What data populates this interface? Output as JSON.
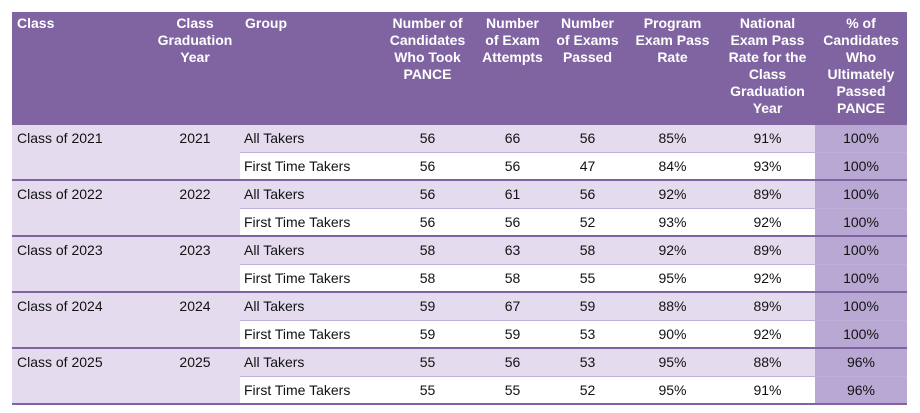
{
  "table": {
    "columns": [
      "Class",
      "Class Graduation Year",
      "Group",
      "Number of Candidates Who Took PANCE",
      "Number of Exam Attempts",
      "Number of Exams Passed",
      "Program Exam Pass Rate",
      "National Exam Pass Rate for the Class Graduation Year",
      "% of Candidates Who Ultimately Passed PANCE"
    ],
    "groups": [
      {
        "class": "Class of 2021",
        "year": 2021,
        "rows": [
          [
            "All Takers",
            56,
            66,
            56,
            "85%",
            "91%",
            "100%"
          ],
          [
            "First Time Takers",
            56,
            56,
            47,
            "84%",
            "93%",
            "100%"
          ]
        ]
      },
      {
        "class": "Class of 2022",
        "year": 2022,
        "rows": [
          [
            "All Takers",
            56,
            61,
            56,
            "92%",
            "89%",
            "100%"
          ],
          [
            "First Time Takers",
            56,
            56,
            52,
            "93%",
            "92%",
            "100%"
          ]
        ]
      },
      {
        "class": "Class of 2023",
        "year": 2023,
        "rows": [
          [
            "All Takers",
            58,
            63,
            58,
            "92%",
            "89%",
            "100%"
          ],
          [
            "First Time Takers",
            58,
            58,
            55,
            "95%",
            "92%",
            "100%"
          ]
        ]
      },
      {
        "class": "Class of 2024",
        "year": 2024,
        "rows": [
          [
            "All Takers",
            59,
            67,
            59,
            "88%",
            "89%",
            "100%"
          ],
          [
            "First Time Takers",
            59,
            59,
            53,
            "90%",
            "92%",
            "100%"
          ]
        ]
      },
      {
        "class": "Class of 2025",
        "year": 2025,
        "rows": [
          [
            "All Takers",
            55,
            56,
            53,
            "95%",
            "88%",
            "96%"
          ],
          [
            "First Time Takers",
            55,
            55,
            52,
            "95%",
            "91%",
            "96%"
          ]
        ]
      }
    ]
  }
}
